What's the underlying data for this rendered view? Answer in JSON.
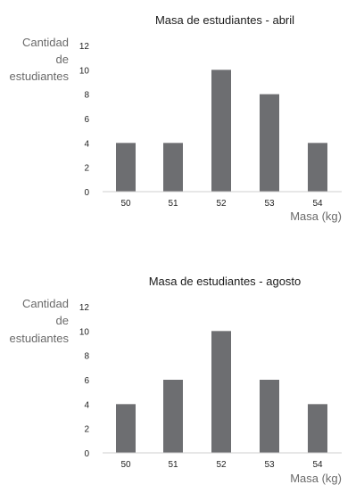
{
  "chart_data": [
    {
      "type": "bar",
      "title": "Masa de estudiantes - abril",
      "ylabel_lines": [
        "Cantidad",
        "de",
        "estudiantes"
      ],
      "xlabel": "Masa (kg)",
      "categories": [
        "50",
        "51",
        "52",
        "53",
        "54"
      ],
      "values": [
        4,
        4,
        10,
        8,
        4
      ],
      "yticks": [
        0,
        2,
        4,
        6,
        8,
        10,
        12
      ],
      "ylim": [
        0,
        12
      ],
      "grid": false,
      "bar_color": "#6d6e71"
    },
    {
      "type": "bar",
      "title": "Masa de estudiantes - agosto",
      "ylabel_lines": [
        "Cantidad",
        "de",
        "estudiantes"
      ],
      "xlabel": "Masa (kg)",
      "categories": [
        "50",
        "51",
        "52",
        "53",
        "54"
      ],
      "values": [
        4,
        6,
        10,
        6,
        4
      ],
      "yticks": [
        0,
        2,
        4,
        6,
        8,
        10,
        12
      ],
      "ylim": [
        0,
        12
      ],
      "grid": false,
      "bar_color": "#6d6e71"
    }
  ]
}
